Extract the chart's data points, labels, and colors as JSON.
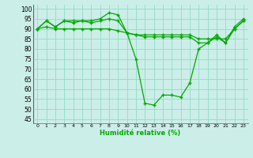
{
  "xlabel": "Humidité relative (%)",
  "background_color": "#cceee8",
  "grid_color": "#99ddcc",
  "line_color": "#00aa00",
  "xlim": [
    -0.5,
    23.5
  ],
  "ylim": [
    43,
    102
  ],
  "yticks": [
    45,
    50,
    55,
    60,
    65,
    70,
    75,
    80,
    85,
    90,
    95,
    100
  ],
  "xticks": [
    0,
    1,
    2,
    3,
    4,
    5,
    6,
    7,
    8,
    9,
    10,
    11,
    12,
    13,
    14,
    15,
    16,
    17,
    18,
    19,
    20,
    21,
    22,
    23
  ],
  "series": [
    [
      90,
      94,
      91,
      94,
      94,
      94,
      94,
      95,
      98,
      97,
      88,
      75,
      53,
      52,
      57,
      57,
      56,
      63,
      80,
      83,
      87,
      83,
      91,
      95
    ],
    [
      90,
      94,
      91,
      94,
      93,
      94,
      93,
      94,
      95,
      94,
      88,
      87,
      87,
      87,
      87,
      87,
      87,
      87,
      85,
      85,
      85,
      85,
      90,
      94
    ],
    [
      90,
      91,
      90,
      90,
      90,
      90,
      90,
      90,
      90,
      89,
      88,
      87,
      86,
      86,
      86,
      86,
      86,
      86,
      83,
      83,
      86,
      83,
      90,
      94
    ]
  ]
}
